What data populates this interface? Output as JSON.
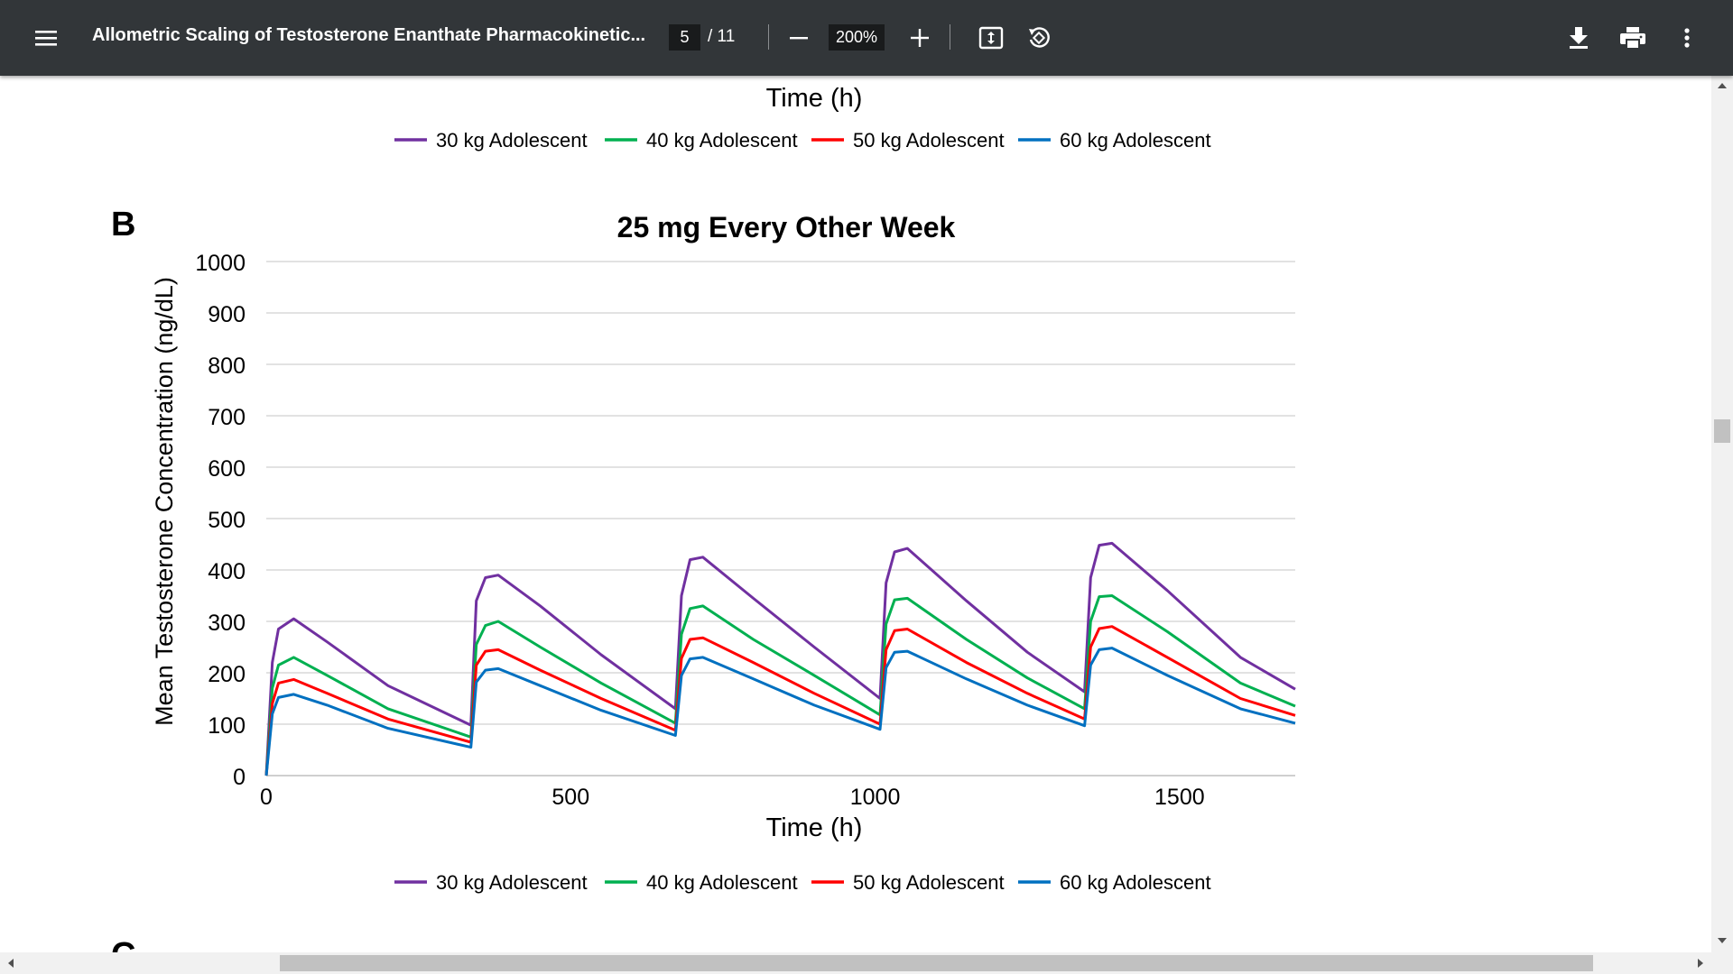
{
  "toolbar": {
    "menu_icon": "hamburger-menu-icon",
    "title": "Allometric Scaling of Testosterone Enanthate Pharmacokinetic...",
    "current_page": "5",
    "total_pages": "/ 11",
    "zoom": "200%",
    "icons": [
      "zoom-out-icon",
      "zoom-in-icon",
      "fit-page-icon",
      "rotate-icon",
      "download-icon",
      "print-icon",
      "more-options-icon"
    ]
  },
  "prev_chart": {
    "xlabel": "Time (h)",
    "legend": [
      "30 kg Adolescent",
      "40 kg Adolescent",
      "50 kg Adolescent",
      "60 kg Adolescent"
    ]
  },
  "panel_label": "B",
  "next_panel_label": "C",
  "chart_data": {
    "type": "line",
    "title": "25 mg Every Other Week",
    "xlabel": "Time (h)",
    "ylabel": "Mean Testosterone Concentration (ng/dL)",
    "xlim": [
      0,
      1690
    ],
    "ylim": [
      0,
      1000
    ],
    "xticks": [
      0,
      500,
      1000,
      1500
    ],
    "yticks": [
      0,
      100,
      200,
      300,
      400,
      500,
      600,
      700,
      800,
      900,
      1000
    ],
    "grid": true,
    "legend_position": "bottom",
    "dose_times": [
      0,
      336,
      672,
      1008,
      1344
    ],
    "series": [
      {
        "name": "30 kg Adolescent",
        "color": "#7030A0",
        "values": [
          [
            0,
            0
          ],
          [
            10,
            220
          ],
          [
            20,
            285
          ],
          [
            45,
            305
          ],
          [
            100,
            260
          ],
          [
            200,
            175
          ],
          [
            336,
            98
          ],
          [
            345,
            340
          ],
          [
            360,
            385
          ],
          [
            381,
            390
          ],
          [
            450,
            330
          ],
          [
            550,
            235
          ],
          [
            672,
            130
          ],
          [
            682,
            350
          ],
          [
            696,
            420
          ],
          [
            717,
            425
          ],
          [
            800,
            345
          ],
          [
            900,
            250
          ],
          [
            1008,
            150
          ],
          [
            1018,
            375
          ],
          [
            1032,
            435
          ],
          [
            1053,
            442
          ],
          [
            1150,
            340
          ],
          [
            1250,
            240
          ],
          [
            1344,
            163
          ],
          [
            1354,
            385
          ],
          [
            1368,
            448
          ],
          [
            1389,
            452
          ],
          [
            1480,
            360
          ],
          [
            1600,
            230
          ],
          [
            1690,
            168
          ]
        ]
      },
      {
        "name": "40 kg Adolescent",
        "color": "#00B050",
        "values": [
          [
            0,
            0
          ],
          [
            10,
            170
          ],
          [
            20,
            215
          ],
          [
            45,
            230
          ],
          [
            100,
            195
          ],
          [
            200,
            130
          ],
          [
            336,
            75
          ],
          [
            345,
            255
          ],
          [
            360,
            292
          ],
          [
            381,
            300
          ],
          [
            450,
            250
          ],
          [
            550,
            180
          ],
          [
            672,
            102
          ],
          [
            682,
            275
          ],
          [
            696,
            325
          ],
          [
            717,
            330
          ],
          [
            800,
            265
          ],
          [
            900,
            195
          ],
          [
            1008,
            118
          ],
          [
            1018,
            295
          ],
          [
            1032,
            342
          ],
          [
            1053,
            345
          ],
          [
            1150,
            265
          ],
          [
            1250,
            190
          ],
          [
            1344,
            130
          ],
          [
            1354,
            300
          ],
          [
            1368,
            348
          ],
          [
            1389,
            350
          ],
          [
            1480,
            280
          ],
          [
            1600,
            180
          ],
          [
            1690,
            135
          ]
        ]
      },
      {
        "name": "50 kg Adolescent",
        "color": "#FF0000",
        "values": [
          [
            0,
            0
          ],
          [
            10,
            140
          ],
          [
            20,
            180
          ],
          [
            45,
            187
          ],
          [
            100,
            160
          ],
          [
            200,
            110
          ],
          [
            336,
            65
          ],
          [
            345,
            215
          ],
          [
            360,
            242
          ],
          [
            381,
            245
          ],
          [
            450,
            205
          ],
          [
            550,
            150
          ],
          [
            672,
            88
          ],
          [
            682,
            228
          ],
          [
            696,
            265
          ],
          [
            717,
            268
          ],
          [
            800,
            220
          ],
          [
            900,
            160
          ],
          [
            1008,
            100
          ],
          [
            1018,
            245
          ],
          [
            1032,
            282
          ],
          [
            1053,
            285
          ],
          [
            1150,
            220
          ],
          [
            1250,
            160
          ],
          [
            1344,
            110
          ],
          [
            1354,
            250
          ],
          [
            1368,
            286
          ],
          [
            1389,
            290
          ],
          [
            1480,
            230
          ],
          [
            1600,
            150
          ],
          [
            1690,
            117
          ]
        ]
      },
      {
        "name": "60 kg Adolescent",
        "color": "#0070C0",
        "values": [
          [
            0,
            0
          ],
          [
            10,
            120
          ],
          [
            20,
            152
          ],
          [
            45,
            158
          ],
          [
            100,
            137
          ],
          [
            200,
            92
          ],
          [
            336,
            55
          ],
          [
            345,
            182
          ],
          [
            360,
            205
          ],
          [
            381,
            208
          ],
          [
            450,
            175
          ],
          [
            550,
            127
          ],
          [
            672,
            78
          ],
          [
            682,
            195
          ],
          [
            696,
            227
          ],
          [
            717,
            230
          ],
          [
            800,
            188
          ],
          [
            900,
            137
          ],
          [
            1008,
            90
          ],
          [
            1018,
            210
          ],
          [
            1032,
            240
          ],
          [
            1053,
            242
          ],
          [
            1150,
            188
          ],
          [
            1250,
            137
          ],
          [
            1344,
            97
          ],
          [
            1354,
            215
          ],
          [
            1368,
            245
          ],
          [
            1389,
            248
          ],
          [
            1480,
            195
          ],
          [
            1600,
            130
          ],
          [
            1690,
            102
          ]
        ]
      }
    ]
  }
}
